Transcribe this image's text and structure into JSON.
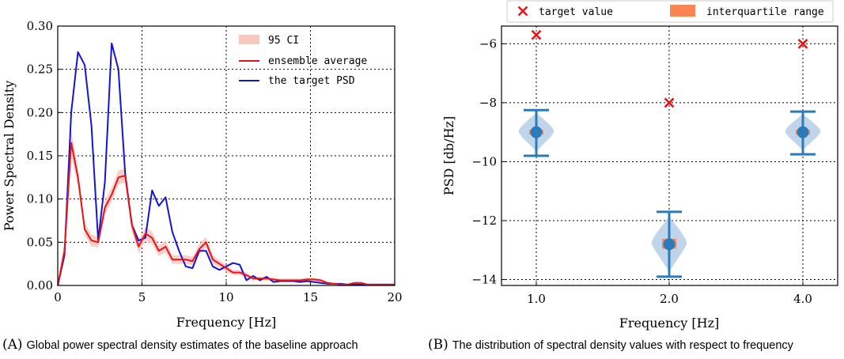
{
  "captions": {
    "a_label": "(A)",
    "a_text": "Global power spectral density estimates of the baseline approach",
    "b_label": "(B)",
    "b_text": "The distribution of spectral density values with respect to frequency"
  },
  "chart_data": [
    {
      "id": "A",
      "type": "line",
      "xlabel": "Frequency [Hz]",
      "ylabel": "Power Spectral Density",
      "xlim": [
        0,
        20
      ],
      "ylim": [
        0,
        0.3
      ],
      "xticks": [
        0,
        5,
        10,
        15,
        20
      ],
      "yticks": [
        0.0,
        0.05,
        0.1,
        0.15,
        0.2,
        0.25,
        0.3
      ],
      "xtick_labels": [
        "0",
        "5",
        "10",
        "15",
        "20"
      ],
      "ytick_labels": [
        "0.00",
        "0.05",
        "0.10",
        "0.15",
        "0.20",
        "0.25",
        "0.30"
      ],
      "grid": true,
      "legend_position": "top-right",
      "ci_label": "95 CI",
      "ci_color": "#f8c7bd",
      "series": [
        {
          "name": "ensemble average",
          "color": "#e8141a",
          "points": [
            [
              0,
              0.0
            ],
            [
              0.4,
              0.04
            ],
            [
              0.8,
              0.165
            ],
            [
              1.2,
              0.125
            ],
            [
              1.6,
              0.065
            ],
            [
              2.0,
              0.052
            ],
            [
              2.4,
              0.05
            ],
            [
              2.8,
              0.09
            ],
            [
              3.2,
              0.105
            ],
            [
              3.6,
              0.125
            ],
            [
              4.0,
              0.127
            ],
            [
              4.4,
              0.07
            ],
            [
              4.8,
              0.045
            ],
            [
              5.2,
              0.06
            ],
            [
              5.6,
              0.055
            ],
            [
              6.0,
              0.04
            ],
            [
              6.4,
              0.045
            ],
            [
              6.8,
              0.03
            ],
            [
              7.2,
              0.03
            ],
            [
              7.6,
              0.03
            ],
            [
              8.0,
              0.028
            ],
            [
              8.4,
              0.042
            ],
            [
              8.8,
              0.05
            ],
            [
              9.2,
              0.03
            ],
            [
              9.6,
              0.025
            ],
            [
              10.0,
              0.02
            ],
            [
              10.4,
              0.015
            ],
            [
              10.8,
              0.015
            ],
            [
              11.2,
              0.012
            ],
            [
              11.6,
              0.008
            ],
            [
              12.0,
              0.008
            ],
            [
              12.4,
              0.008
            ],
            [
              12.8,
              0.007
            ],
            [
              13.2,
              0.006
            ],
            [
              13.6,
              0.006
            ],
            [
              14.0,
              0.006
            ],
            [
              14.4,
              0.006
            ],
            [
              14.8,
              0.007
            ],
            [
              15.2,
              0.007
            ],
            [
              15.6,
              0.006
            ],
            [
              16.0,
              0.003
            ],
            [
              16.4,
              0.002
            ],
            [
              16.8,
              0.001
            ],
            [
              17.2,
              0.001
            ],
            [
              17.6,
              0.003
            ],
            [
              18.0,
              0.003
            ],
            [
              18.4,
              0.001
            ],
            [
              18.8,
              0.001
            ],
            [
              19.2,
              0.001
            ],
            [
              19.6,
              0.001
            ],
            [
              20.0,
              0.001
            ]
          ],
          "ci_lower": [
            0.0,
            0.03,
            0.15,
            0.115,
            0.058,
            0.045,
            0.044,
            0.082,
            0.097,
            0.117,
            0.119,
            0.062,
            0.038,
            0.052,
            0.048,
            0.034,
            0.038,
            0.025,
            0.025,
            0.025,
            0.023,
            0.036,
            0.044,
            0.025,
            0.021,
            0.016,
            0.012,
            0.012,
            0.009,
            0.006,
            0.006,
            0.006,
            0.005,
            0.004,
            0.004,
            0.004,
            0.004,
            0.005,
            0.005,
            0.004,
            0.002,
            0.001,
            0.0,
            0.0,
            0.002,
            0.002,
            0.0,
            0.0,
            0.0,
            0.0,
            0.0
          ],
          "ci_upper": [
            0.002,
            0.05,
            0.18,
            0.135,
            0.072,
            0.059,
            0.056,
            0.098,
            0.113,
            0.133,
            0.135,
            0.078,
            0.052,
            0.068,
            0.062,
            0.046,
            0.052,
            0.035,
            0.035,
            0.035,
            0.033,
            0.048,
            0.056,
            0.035,
            0.029,
            0.024,
            0.018,
            0.018,
            0.015,
            0.01,
            0.01,
            0.01,
            0.009,
            0.008,
            0.008,
            0.008,
            0.008,
            0.009,
            0.009,
            0.008,
            0.004,
            0.003,
            0.002,
            0.002,
            0.004,
            0.004,
            0.002,
            0.002,
            0.002,
            0.002,
            0.002
          ]
        },
        {
          "name": "the target PSD",
          "color": "#1414d6",
          "points": [
            [
              0,
              0.0
            ],
            [
              0.4,
              0.035
            ],
            [
              0.8,
              0.2
            ],
            [
              1.2,
              0.27
            ],
            [
              1.6,
              0.255
            ],
            [
              2.0,
              0.185
            ],
            [
              2.4,
              0.052
            ],
            [
              2.8,
              0.12
            ],
            [
              3.2,
              0.28
            ],
            [
              3.6,
              0.25
            ],
            [
              4.0,
              0.13
            ],
            [
              4.4,
              0.07
            ],
            [
              4.8,
              0.052
            ],
            [
              5.2,
              0.055
            ],
            [
              5.6,
              0.11
            ],
            [
              6.0,
              0.092
            ],
            [
              6.4,
              0.102
            ],
            [
              6.8,
              0.062
            ],
            [
              7.2,
              0.04
            ],
            [
              7.6,
              0.022
            ],
            [
              8.0,
              0.02
            ],
            [
              8.4,
              0.04
            ],
            [
              8.8,
              0.04
            ],
            [
              9.2,
              0.022
            ],
            [
              9.6,
              0.018
            ],
            [
              10.0,
              0.022
            ],
            [
              10.4,
              0.026
            ],
            [
              10.8,
              0.024
            ],
            [
              11.2,
              0.006
            ],
            [
              11.6,
              0.011
            ],
            [
              12.0,
              0.006
            ],
            [
              12.4,
              0.01
            ],
            [
              12.8,
              0.004
            ],
            [
              13.2,
              0.005
            ],
            [
              13.6,
              0.005
            ],
            [
              14.0,
              0.005
            ],
            [
              14.4,
              0.004
            ],
            [
              14.8,
              0.005
            ],
            [
              15.2,
              0.004
            ],
            [
              15.6,
              0.003
            ],
            [
              16.0,
              0.002
            ],
            [
              16.4,
              0.002
            ],
            [
              16.8,
              0.002
            ],
            [
              17.2,
              0.001
            ],
            [
              17.6,
              0.001
            ],
            [
              18.0,
              0.001
            ],
            [
              18.4,
              0.001
            ],
            [
              18.8,
              0.001
            ],
            [
              19.2,
              0.001
            ],
            [
              19.6,
              0.001
            ],
            [
              20.0,
              0.001
            ]
          ]
        }
      ]
    },
    {
      "id": "B",
      "type": "scatter",
      "xlabel": "Frequency [Hz]",
      "ylabel": "PSD [db/Hz]",
      "categories": [
        "1.0",
        "2.0",
        "4.0"
      ],
      "ylim": [
        -14.2,
        -5.4
      ],
      "yticks": [
        -14,
        -12,
        -10,
        -8,
        -6
      ],
      "ytick_labels": [
        "−14",
        "−12",
        "−10",
        "−8",
        "−6"
      ],
      "grid": true,
      "legend_position": "top (outside)",
      "legend": {
        "target_label": "target value",
        "iqr_label": "interquartile range"
      },
      "colors": {
        "target": "#e8141a",
        "iqr": "#fa8452",
        "violin": "#b0cbe3",
        "errorbar": "#2b7bba",
        "median": "#2b7bba"
      },
      "target_values": [
        -5.7,
        -8.0,
        -6.0
      ],
      "medians": [
        -9.0,
        -12.8,
        -9.0
      ],
      "whisker_low": [
        -9.8,
        -13.9,
        -9.75
      ],
      "whisker_high": [
        -8.25,
        -11.7,
        -8.3
      ],
      "iqr_low": [
        -9.08,
        -12.95,
        -9.08
      ],
      "iqr_high": [
        -8.92,
        -12.62,
        -8.92
      ]
    }
  ]
}
